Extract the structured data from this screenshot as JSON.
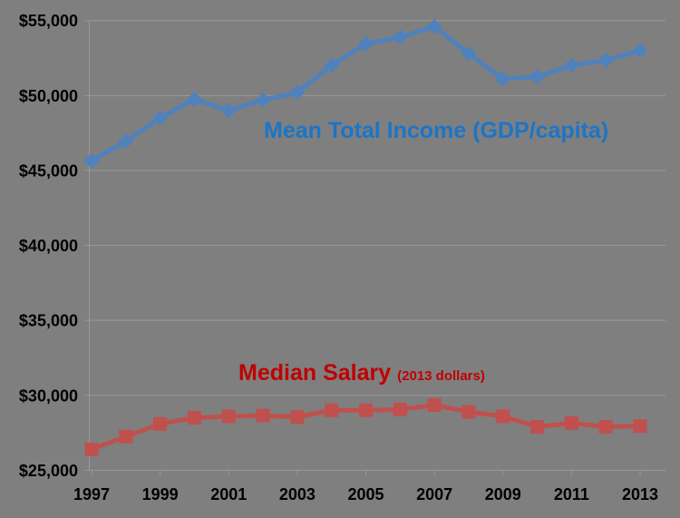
{
  "chart_data": {
    "type": "line",
    "title": "",
    "x": [
      1997,
      1998,
      1999,
      2000,
      2001,
      2002,
      2003,
      2004,
      2005,
      2006,
      2007,
      2008,
      2009,
      2010,
      2011,
      2012,
      2013
    ],
    "x_tick_labels": [
      "1997",
      "1999",
      "2001",
      "2003",
      "2005",
      "2007",
      "2009",
      "2011",
      "2013"
    ],
    "y_ticks": [
      25000,
      30000,
      35000,
      40000,
      45000,
      50000,
      55000
    ],
    "y_tick_labels": [
      "$25,000",
      "$30,000",
      "$35,000",
      "$40,000",
      "$45,000",
      "$50,000",
      "$55,000"
    ],
    "ylim": [
      25000,
      55000
    ],
    "grid": true,
    "legend_position": "inline-labels",
    "background_color": "#7F7F7F",
    "gridline_color": "#999999",
    "axis_label_color": "#000000",
    "series": [
      {
        "name": "Mean Total Income (GDP/capita)",
        "annotation": "",
        "marker": "diamond",
        "line_color": "#4F81BD",
        "label_color": "#1B75C8",
        "values": [
          45650,
          46950,
          48500,
          49750,
          49000,
          49700,
          50200,
          52000,
          53450,
          53900,
          54600,
          52800,
          51100,
          51250,
          52000,
          52350,
          53000
        ]
      },
      {
        "name": "Median Salary",
        "annotation": "(2013 dollars)",
        "marker": "square",
        "line_color": "#C0504D",
        "label_color": "#C00000",
        "values": [
          26400,
          27250,
          28100,
          28500,
          28600,
          28650,
          28550,
          29000,
          29000,
          29050,
          29350,
          28900,
          28600,
          27900,
          28150,
          27900,
          27950
        ]
      }
    ]
  }
}
